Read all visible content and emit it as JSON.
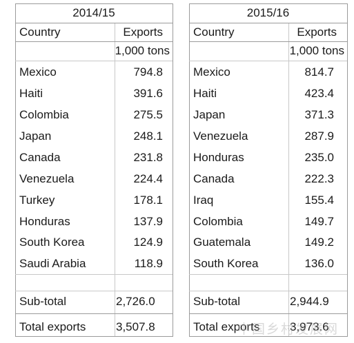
{
  "left": {
    "period": "2014/15",
    "col_country": "Country",
    "col_exports": "Exports",
    "unit": "1,000 tons",
    "rows": [
      {
        "country": "Mexico",
        "exports": "794.8"
      },
      {
        "country": "Haiti",
        "exports": "391.6"
      },
      {
        "country": "Colombia",
        "exports": "275.5"
      },
      {
        "country": "Japan",
        "exports": "248.1"
      },
      {
        "country": "Canada",
        "exports": "231.8"
      },
      {
        "country": "Venezuela",
        "exports": "224.4"
      },
      {
        "country": "Turkey",
        "exports": "178.1"
      },
      {
        "country": "Honduras",
        "exports": "137.9"
      },
      {
        "country": "South Korea",
        "exports": "124.9"
      },
      {
        "country": "Saudi Arabia",
        "exports": "118.9"
      }
    ],
    "subtotal_label": "Sub-total",
    "subtotal_value": "2,726.0",
    "total_label": "Total exports",
    "total_value": "3,507.8"
  },
  "right": {
    "period": "2015/16",
    "col_country": "Country",
    "col_exports": "Exports",
    "unit": "1,000 tons",
    "rows": [
      {
        "country": "Mexico",
        "exports": "814.7"
      },
      {
        "country": "Haiti",
        "exports": "423.4"
      },
      {
        "country": "Japan",
        "exports": "371.3"
      },
      {
        "country": "Venezuela",
        "exports": "287.9"
      },
      {
        "country": "Honduras",
        "exports": "235.0"
      },
      {
        "country": "Canada",
        "exports": "222.3"
      },
      {
        "country": "Iraq",
        "exports": "155.4"
      },
      {
        "country": "Colombia",
        "exports": "149.7"
      },
      {
        "country": "Guatemala",
        "exports": "149.2"
      },
      {
        "country": "South Korea",
        "exports": "136.0"
      }
    ],
    "subtotal_label": "Sub-total",
    "subtotal_value": "2,944.9",
    "total_label": "Total exports",
    "total_value": "3,973.6"
  },
  "watermark": "中国乡村发展网"
}
